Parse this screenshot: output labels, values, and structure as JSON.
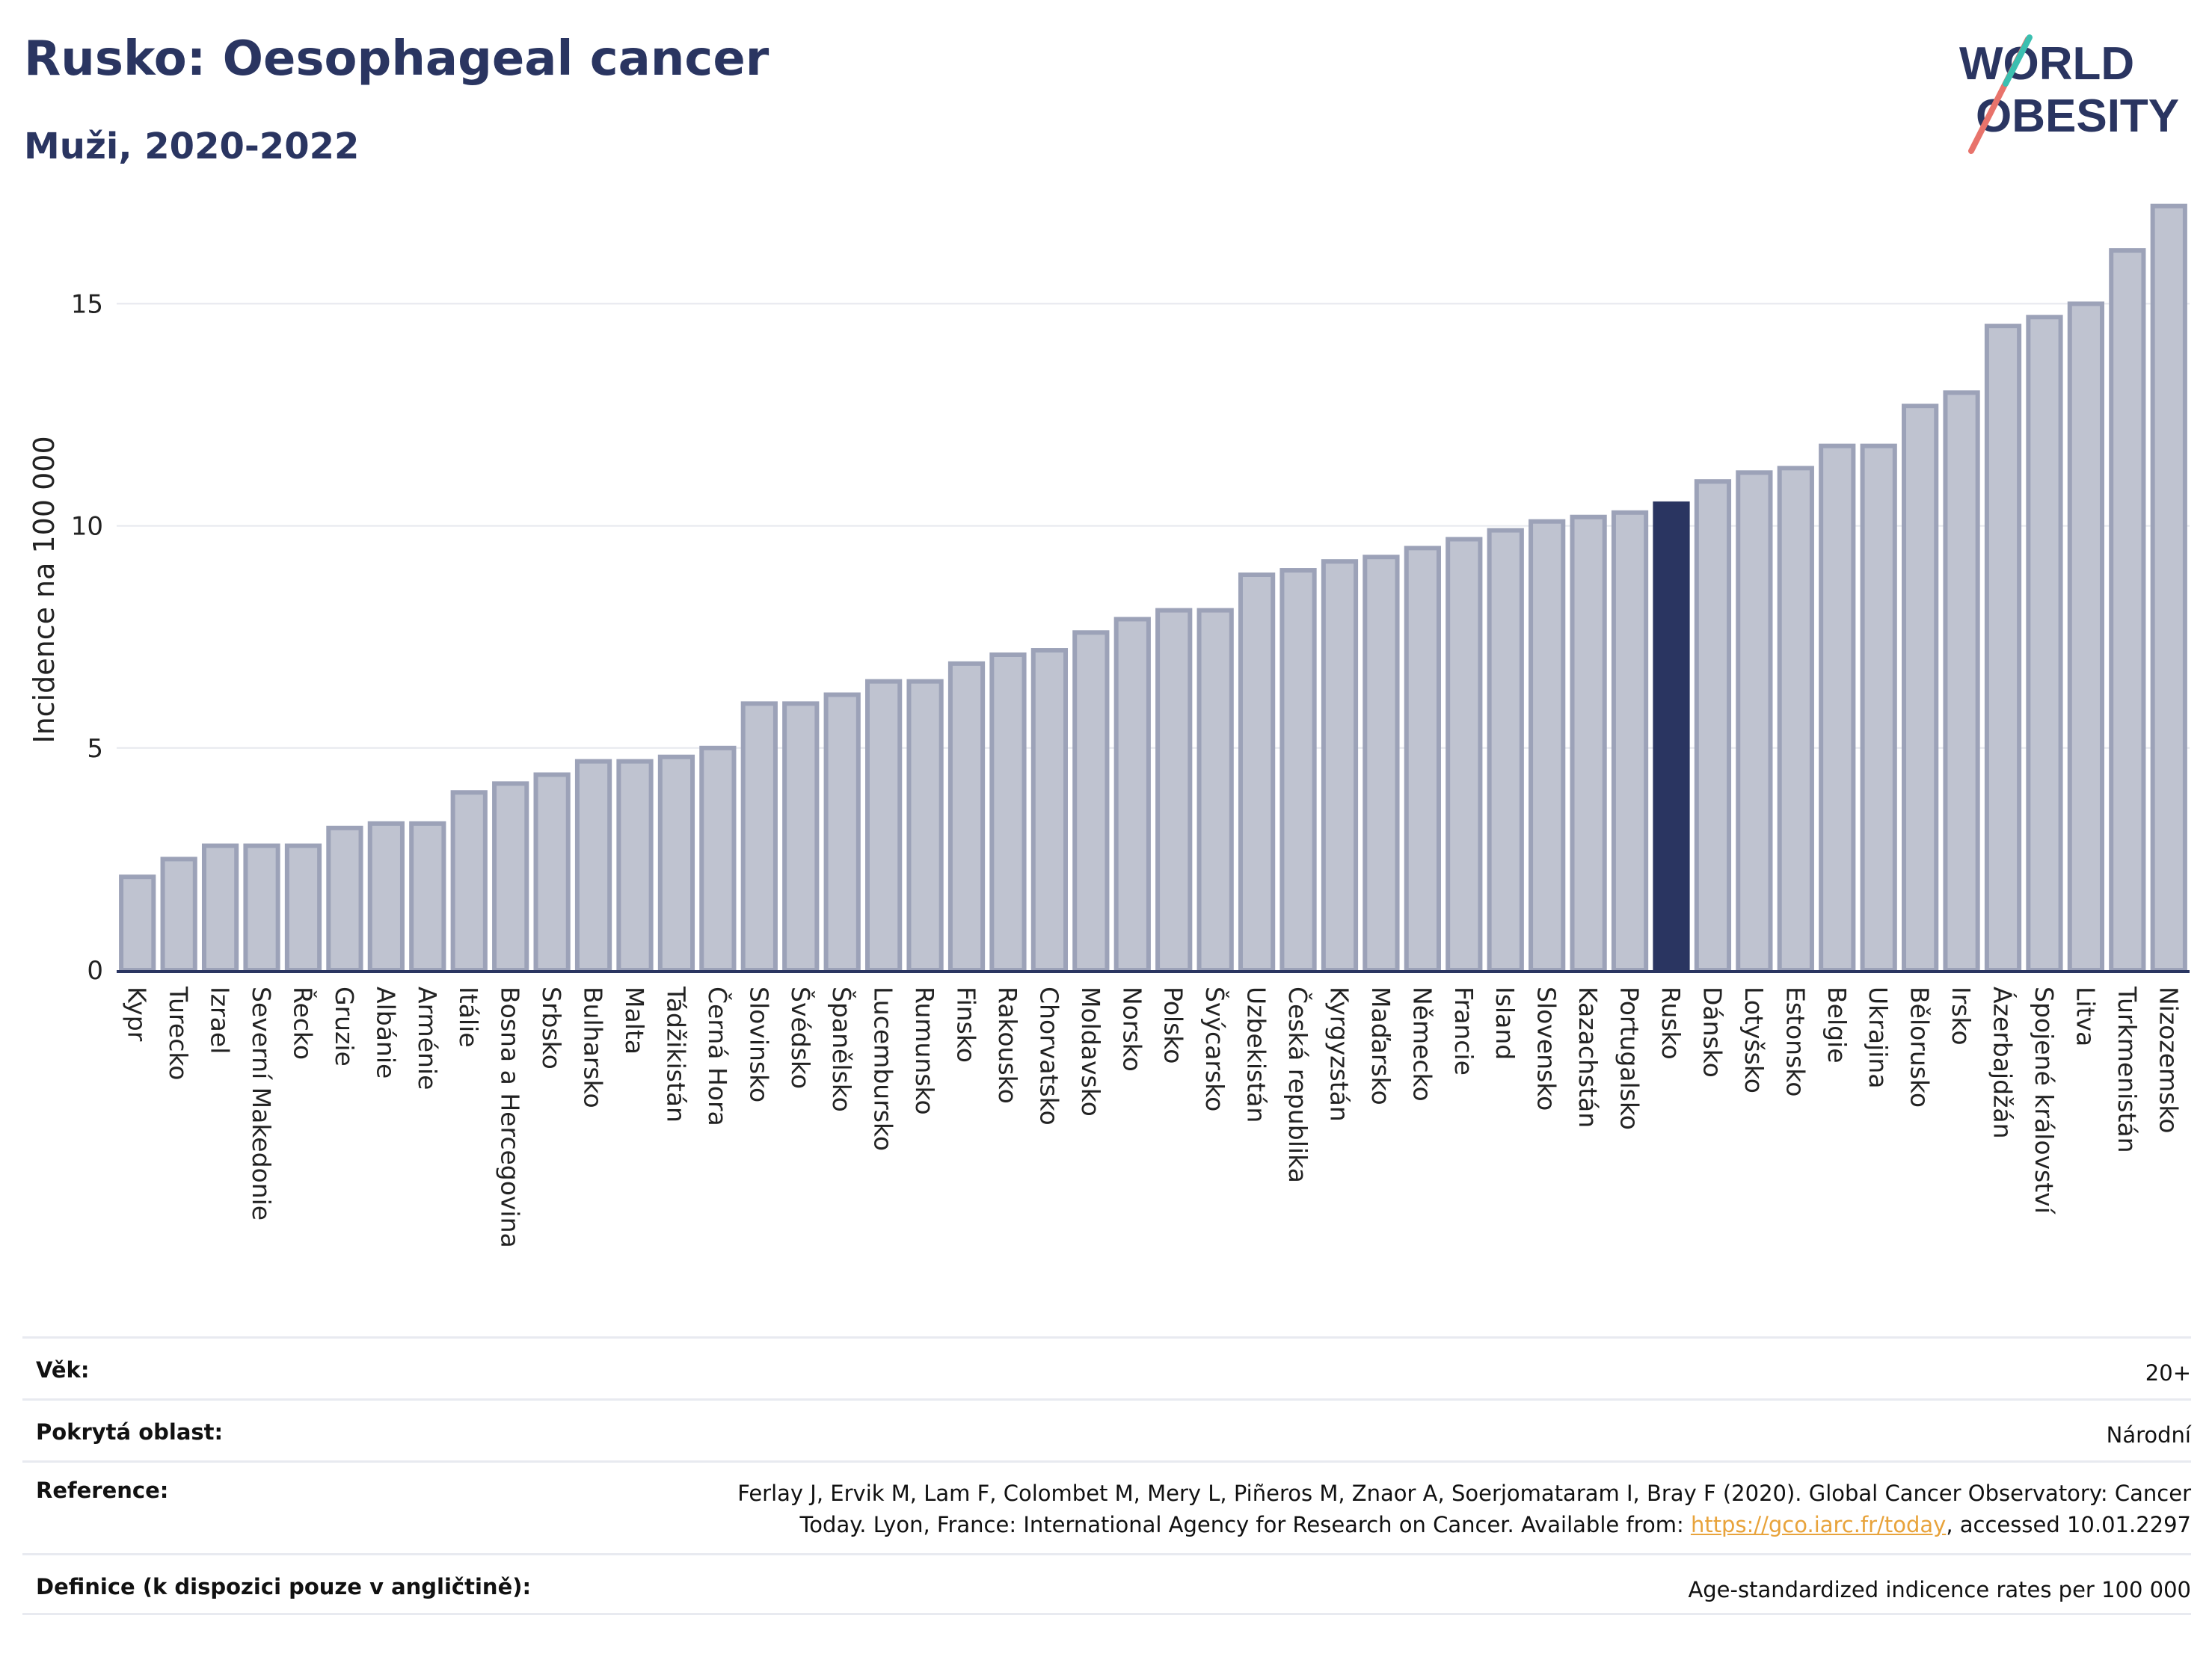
{
  "header": {
    "title": "Rusko: Oesophageal cancer",
    "subtitle": "Muži, 2020-2022"
  },
  "logo": {
    "line1": "WORLD",
    "line2": "OBESITY",
    "name": "world-obesity-logo"
  },
  "colors": {
    "highlight": "#2a3561",
    "bar": "#bfc3d0",
    "bar_stroke": "#9ca2b8",
    "text": "#2a3561"
  },
  "chart_data": {
    "type": "bar",
    "ylabel": "Incidence na 100 000",
    "ylim": [
      0,
      17.8
    ],
    "yticks": [
      0,
      5,
      10,
      15
    ],
    "grid": true,
    "highlight": "Rusko",
    "categories": [
      "Kypr",
      "Turecko",
      "Izrael",
      "Severní Makedonie",
      "Řecko",
      "Gruzie",
      "Albánie",
      "Arménie",
      "Itálie",
      "Bosna a Hercegovina",
      "Srbsko",
      "Bulharsko",
      "Malta",
      "Tádžikistán",
      "Černá Hora",
      "Slovinsko",
      "Švédsko",
      "Španělsko",
      "Lucembursko",
      "Rumunsko",
      "Finsko",
      "Rakousko",
      "Chorvatsko",
      "Moldavsko",
      "Norsko",
      "Polsko",
      "Švýcarsko",
      "Uzbekistán",
      "Česká republika",
      "Kyrgyzstán",
      "Maďarsko",
      "Německo",
      "Francie",
      "Island",
      "Slovensko",
      "Kazachstán",
      "Portugalsko",
      "Rusko",
      "Dánsko",
      "Lotyšsko",
      "Estonsko",
      "Belgie",
      "Ukrajina",
      "Bělorusko",
      "Irsko",
      "Ázerbajdžán",
      "Spojené království",
      "Litva",
      "Turkmenistán",
      "Nizozemsko"
    ],
    "values": [
      2.1,
      2.5,
      2.8,
      2.8,
      2.8,
      3.2,
      3.3,
      3.3,
      4.0,
      4.2,
      4.4,
      4.7,
      4.7,
      4.8,
      5.0,
      6.0,
      6.0,
      6.2,
      6.5,
      6.5,
      6.9,
      7.1,
      7.2,
      7.6,
      7.9,
      8.1,
      8.1,
      8.9,
      9.0,
      9.2,
      9.3,
      9.5,
      9.7,
      9.9,
      10.1,
      10.2,
      10.3,
      10.5,
      11.0,
      11.2,
      11.3,
      11.8,
      11.8,
      12.7,
      13.0,
      14.5,
      14.7,
      15.0,
      16.2,
      17.2
    ]
  },
  "meta": [
    {
      "label": "Věk:",
      "value": "20+"
    },
    {
      "label": "Pokrytá oblast:",
      "value": "Národní"
    },
    {
      "label": "Reference:",
      "value_pre": "Ferlay J, Ervik M, Lam F, Colombet M, Mery L, Piñeros M, Znaor A, Soerjomataram I, Bray F (2020). Global Cancer Observatory: Cancer Today. Lyon, France: International Agency for Research on Cancer. Available from: ",
      "link": "https://gco.iarc.fr/today",
      "value_post": ", accessed 10.01.2297"
    },
    {
      "label": "Definice (k dispozici pouze v angličtině):",
      "value": "Age-standardized indicence rates per 100 000"
    }
  ]
}
